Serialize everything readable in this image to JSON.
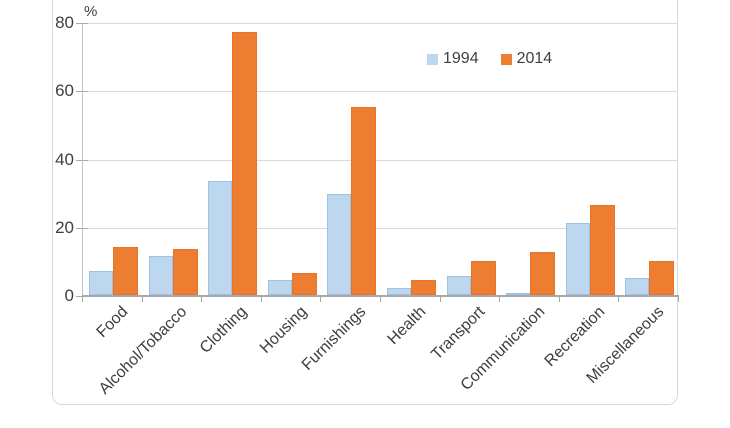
{
  "chart_data": {
    "type": "bar",
    "title": "",
    "xlabel": "",
    "ylabel": "%",
    "categories": [
      "Food",
      "Alcohol/Tobacco",
      "Clothing",
      "Housing",
      "Furnishings",
      "Health",
      "Transport",
      "Communication",
      "Recreation",
      "Miscellaneous"
    ],
    "series": [
      {
        "name": "1994",
        "color": "#BDD7EE",
        "border_color": "#9CC3E5",
        "values": [
          7,
          11.5,
          33.5,
          4.5,
          29.5,
          2,
          5.5,
          0.5,
          21,
          5
        ]
      },
      {
        "name": "2014",
        "color": "#ED7D31",
        "border_color": "#E8742B",
        "values": [
          14,
          13.5,
          77,
          6.5,
          55,
          4.5,
          10,
          12.5,
          26.5,
          10
        ]
      }
    ],
    "ylim": [
      0,
      80
    ],
    "yticks": [
      0,
      20,
      40,
      60,
      80
    ],
    "grid": true,
    "legend_position": "inside-top-center-right"
  },
  "styles": {
    "background": "#FFFFFF",
    "gridline_color": "#DADADA",
    "axis_color": "#A8A8A8",
    "text_color": "#3F3F3F",
    "chart_border_color": "#D9D9D9"
  }
}
